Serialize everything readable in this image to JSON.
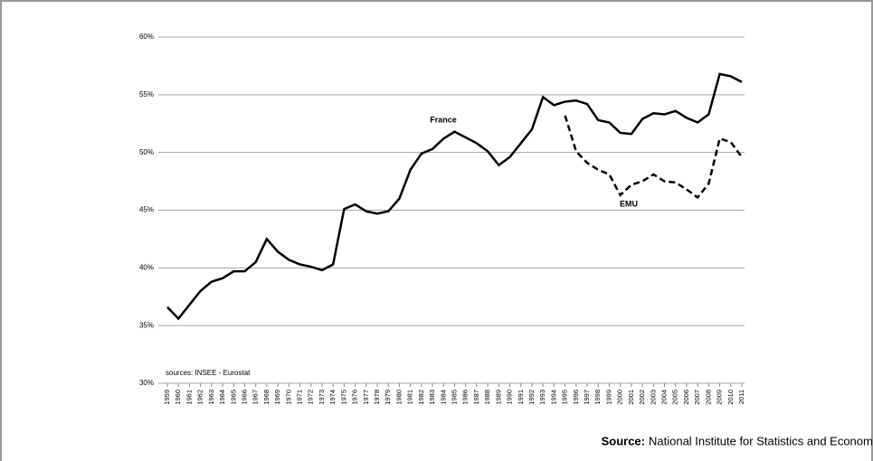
{
  "chart_data": {
    "type": "line",
    "categories": [
      "1959",
      "1960",
      "1961",
      "1962",
      "1963",
      "1964",
      "1965",
      "1966",
      "1967",
      "1968",
      "1969",
      "1970",
      "1971",
      "1972",
      "1973",
      "1974",
      "1975",
      "1976",
      "1977",
      "1978",
      "1979",
      "1980",
      "1981",
      "1982",
      "1983",
      "1984",
      "1985",
      "1986",
      "1987",
      "1988",
      "1989",
      "1990",
      "1991",
      "1992",
      "1993",
      "1994",
      "1995",
      "1996",
      "1997",
      "1998",
      "1999",
      "2000",
      "2001",
      "2002",
      "2003",
      "2004",
      "2005",
      "2006",
      "2007",
      "2008",
      "2009",
      "2010",
      "2011"
    ],
    "series": [
      {
        "name": "France",
        "color": "#000000",
        "dash": false,
        "values": [
          36.6,
          35.6,
          36.8,
          38.0,
          38.8,
          39.1,
          39.7,
          39.7,
          40.5,
          42.5,
          41.4,
          40.7,
          40.3,
          40.1,
          39.8,
          40.3,
          45.1,
          45.5,
          44.9,
          44.7,
          44.9,
          46.0,
          48.5,
          49.9,
          50.3,
          51.2,
          51.8,
          51.3,
          50.8,
          50.1,
          48.9,
          49.6,
          50.8,
          52.0,
          54.8,
          54.1,
          54.4,
          54.5,
          54.2,
          52.8,
          52.6,
          51.7,
          51.6,
          52.9,
          53.4,
          53.3,
          53.6,
          53.0,
          52.6,
          53.3,
          56.8,
          56.6,
          56.1
        ]
      },
      {
        "name": "EMU",
        "color": "#000000",
        "dash": true,
        "values": [
          null,
          null,
          null,
          null,
          null,
          null,
          null,
          null,
          null,
          null,
          null,
          null,
          null,
          null,
          null,
          null,
          null,
          null,
          null,
          null,
          null,
          null,
          null,
          null,
          null,
          null,
          null,
          null,
          null,
          null,
          null,
          null,
          null,
          null,
          null,
          null,
          53.2,
          50.1,
          49.1,
          48.5,
          48.1,
          46.3,
          47.2,
          47.5,
          48.1,
          47.5,
          47.4,
          46.8,
          46.1,
          47.3,
          51.2,
          50.9,
          49.6
        ]
      }
    ],
    "ylim": [
      30,
      60
    ],
    "yticks": [
      {
        "value": 30,
        "label": "30%"
      },
      {
        "value": 35,
        "label": "35%"
      },
      {
        "value": 40,
        "label": "40%"
      },
      {
        "value": 45,
        "label": "45%"
      },
      {
        "value": 50,
        "label": "50%"
      },
      {
        "value": 55,
        "label": "55%"
      },
      {
        "value": 60,
        "label": "60%"
      }
    ],
    "grid": true,
    "annotation": "sources: INSEE - Eurostat",
    "footer_label": "Source:",
    "footer_text": "National Institute for Statistics and Economic Studies (INSEE)."
  }
}
